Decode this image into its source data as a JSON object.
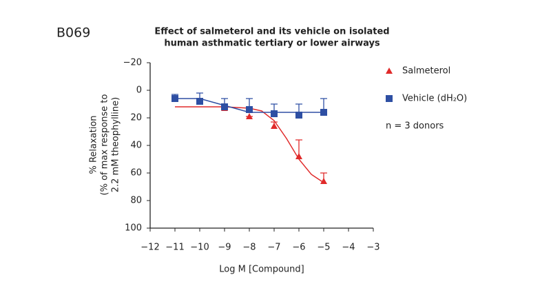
{
  "panel_label": "B069",
  "chart_data": {
    "type": "scatter",
    "title": [
      "Effect of salmeterol and its vehicle on  isolated",
      "human asthmatic tertiary or lower airways"
    ],
    "xlabel": "Log M [Compound]",
    "ylabel": [
      "% Relaxation",
      "(% of max response to",
      "2.2 mM theophylline)"
    ],
    "annotation": "n = 3 donors",
    "xlim": [
      -12,
      -3
    ],
    "xticks": [
      {
        "value": -12,
        "label": "−12"
      },
      {
        "value": -11,
        "label": "−11"
      },
      {
        "value": -10,
        "label": "−10"
      },
      {
        "value": -9,
        "label": "−9"
      },
      {
        "value": -8,
        "label": "−8"
      },
      {
        "value": -7,
        "label": "−7"
      },
      {
        "value": -6,
        "label": "−6"
      },
      {
        "value": -5,
        "label": "−5"
      },
      {
        "value": -4,
        "label": "−4"
      },
      {
        "value": -3,
        "label": "−3"
      }
    ],
    "ylim": [
      -20,
      100
    ],
    "y_inverted": true,
    "yticks": [
      {
        "value": -20,
        "label": "−20"
      },
      0,
      20,
      40,
      60,
      80,
      100
    ],
    "series": [
      {
        "name": "Salmeterol",
        "color": "#e02a2a",
        "marker": "triangle",
        "x": [
          -9,
          -8,
          -7,
          -6,
          -5
        ],
        "values": [
          13,
          19,
          26,
          48,
          66
        ],
        "errors": [
          1,
          0,
          3,
          12,
          6
        ],
        "fit": {
          "x": [
            -11,
            -10,
            -9,
            -8,
            -7.5,
            -7,
            -6.5,
            -6,
            -5.5,
            -5
          ],
          "values": [
            12,
            12,
            12,
            13,
            15,
            22,
            35,
            50,
            61,
            67
          ]
        }
      },
      {
        "name": "Vehicle (dH₂O)",
        "color": "#2e4fa3",
        "marker": "square",
        "x": [
          -11,
          -10,
          -9,
          -8,
          -7,
          -6,
          -5
        ],
        "values": [
          6,
          8,
          12,
          14,
          17,
          18,
          16
        ],
        "errors": [
          3,
          6,
          6,
          8,
          7,
          8,
          10
        ],
        "fit": {
          "x": [
            -11,
            -10,
            -9,
            -8,
            -7,
            -6,
            -5
          ],
          "values": [
            6,
            6,
            11,
            16,
            16,
            16,
            16
          ]
        }
      }
    ]
  }
}
